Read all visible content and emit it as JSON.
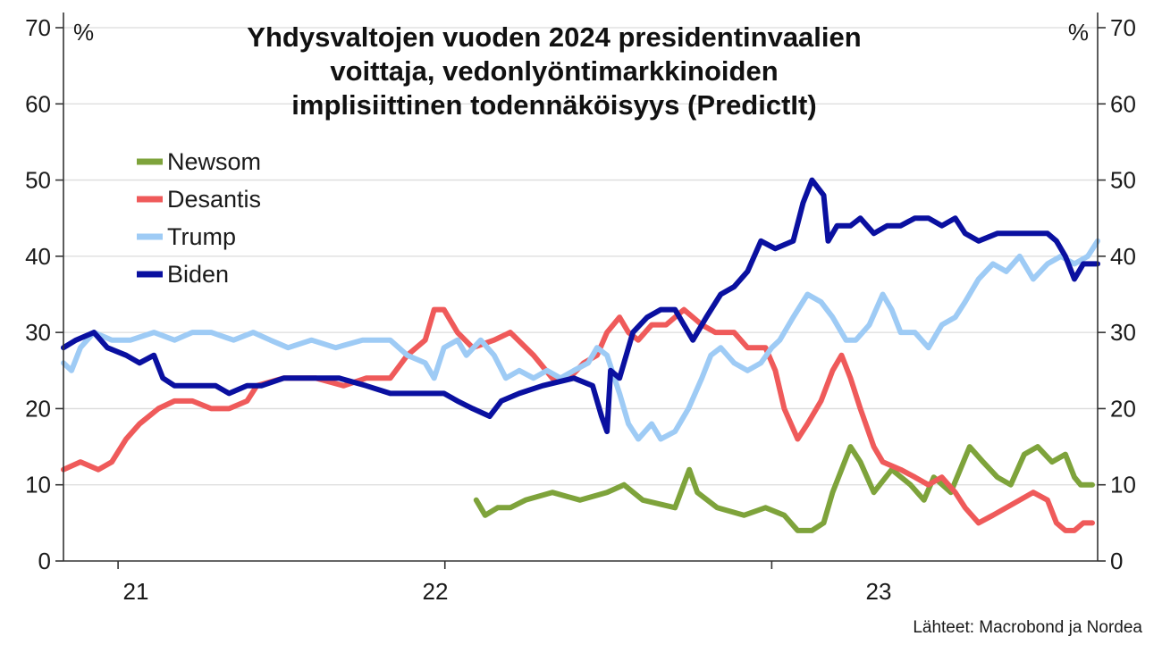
{
  "chart_data": {
    "type": "line",
    "title": [
      "Yhdysvaltojen vuoden 2024 presidentinvaalien",
      "voittaja, vedonlyöntimarkkinoiden",
      "implisiittinen todennäköisyys (PredictIt)"
    ],
    "unit_left": "%",
    "unit_right": "%",
    "source": "Lähteet: Macrobond ja Nordea",
    "ylim": [
      0,
      70
    ],
    "yticks": [
      "0",
      "10",
      "20",
      "30",
      "40",
      "50",
      "60",
      "70"
    ],
    "xlim": [
      "2020-11-01",
      "2023-12-31"
    ],
    "xticks": [
      {
        "date": "2021-01-01",
        "label": "21"
      },
      {
        "date": "2022-01-01",
        "label": "22"
      },
      {
        "date": "2023-01-01",
        "label": "23"
      }
    ],
    "legend_position": "upper-left",
    "grid": true,
    "series": [
      {
        "name": "Newsom",
        "color": "#7ea33b",
        "points": [
          [
            "2022-02-05",
            8
          ],
          [
            "2022-02-15",
            6
          ],
          [
            "2022-03-01",
            7
          ],
          [
            "2022-03-15",
            7
          ],
          [
            "2022-04-01",
            8
          ],
          [
            "2022-05-01",
            9
          ],
          [
            "2022-06-01",
            8
          ],
          [
            "2022-07-01",
            9
          ],
          [
            "2022-07-20",
            10
          ],
          [
            "2022-08-10",
            8
          ],
          [
            "2022-09-15",
            7
          ],
          [
            "2022-10-01",
            12
          ],
          [
            "2022-10-10",
            9
          ],
          [
            "2022-11-01",
            7
          ],
          [
            "2022-12-01",
            6
          ],
          [
            "2022-12-25",
            7
          ],
          [
            "2023-01-15",
            6
          ],
          [
            "2023-01-30",
            4
          ],
          [
            "2023-02-15",
            4
          ],
          [
            "2023-02-28",
            5
          ],
          [
            "2023-03-10",
            9
          ],
          [
            "2023-03-20",
            12
          ],
          [
            "2023-03-30",
            15
          ],
          [
            "2023-04-10",
            13
          ],
          [
            "2023-04-25",
            9
          ],
          [
            "2023-05-15",
            12
          ],
          [
            "2023-06-05",
            10
          ],
          [
            "2023-06-20",
            8
          ],
          [
            "2023-07-01",
            11
          ],
          [
            "2023-07-20",
            9
          ],
          [
            "2023-08-10",
            15
          ],
          [
            "2023-08-25",
            13
          ],
          [
            "2023-09-10",
            11
          ],
          [
            "2023-09-25",
            10
          ],
          [
            "2023-10-10",
            14
          ],
          [
            "2023-10-25",
            15
          ],
          [
            "2023-11-10",
            13
          ],
          [
            "2023-11-25",
            14
          ],
          [
            "2023-12-05",
            11
          ],
          [
            "2023-12-12",
            10
          ],
          [
            "2023-12-25",
            10
          ]
        ]
      },
      {
        "name": "Desantis",
        "color": "#ef5a5a",
        "points": [
          [
            "2020-11-01",
            12
          ],
          [
            "2020-11-20",
            13
          ],
          [
            "2020-12-10",
            12
          ],
          [
            "2020-12-25",
            13
          ],
          [
            "2021-01-10",
            16
          ],
          [
            "2021-01-25",
            18
          ],
          [
            "2021-02-15",
            20
          ],
          [
            "2021-03-05",
            21
          ],
          [
            "2021-03-25",
            21
          ],
          [
            "2021-04-15",
            20
          ],
          [
            "2021-05-05",
            20
          ],
          [
            "2021-05-25",
            21
          ],
          [
            "2021-06-05",
            23
          ],
          [
            "2021-07-05",
            24
          ],
          [
            "2021-08-10",
            24
          ],
          [
            "2021-09-10",
            23
          ],
          [
            "2021-10-05",
            24
          ],
          [
            "2021-11-01",
            24
          ],
          [
            "2021-11-20",
            27
          ],
          [
            "2021-12-10",
            29
          ],
          [
            "2021-12-20",
            33
          ],
          [
            "2021-12-31",
            33
          ],
          [
            "2022-01-15",
            30
          ],
          [
            "2022-02-01",
            28
          ],
          [
            "2022-02-25",
            29
          ],
          [
            "2022-03-15",
            30
          ],
          [
            "2022-04-10",
            27
          ],
          [
            "2022-05-01",
            24
          ],
          [
            "2022-05-20",
            24
          ],
          [
            "2022-06-05",
            26
          ],
          [
            "2022-06-20",
            27
          ],
          [
            "2022-07-01",
            30
          ],
          [
            "2022-07-15",
            32
          ],
          [
            "2022-07-25",
            30
          ],
          [
            "2022-08-05",
            29
          ],
          [
            "2022-08-20",
            31
          ],
          [
            "2022-09-05",
            31
          ],
          [
            "2022-09-25",
            33
          ],
          [
            "2022-10-15",
            31
          ],
          [
            "2022-10-30",
            30
          ],
          [
            "2022-11-20",
            30
          ],
          [
            "2022-12-05",
            28
          ],
          [
            "2022-12-25",
            28
          ],
          [
            "2023-01-05",
            25
          ],
          [
            "2023-01-15",
            20
          ],
          [
            "2023-01-30",
            16
          ],
          [
            "2023-02-10",
            18
          ],
          [
            "2023-02-25",
            21
          ],
          [
            "2023-03-10",
            25
          ],
          [
            "2023-03-20",
            27
          ],
          [
            "2023-03-30",
            24
          ],
          [
            "2023-04-10",
            20
          ],
          [
            "2023-04-25",
            15
          ],
          [
            "2023-05-05",
            13
          ],
          [
            "2023-05-25",
            12
          ],
          [
            "2023-06-10",
            11
          ],
          [
            "2023-06-25",
            10
          ],
          [
            "2023-07-10",
            11
          ],
          [
            "2023-07-25",
            9
          ],
          [
            "2023-08-05",
            7
          ],
          [
            "2023-08-20",
            5
          ],
          [
            "2023-09-05",
            6
          ],
          [
            "2023-09-20",
            7
          ],
          [
            "2023-10-05",
            8
          ],
          [
            "2023-10-20",
            9
          ],
          [
            "2023-11-05",
            8
          ],
          [
            "2023-11-15",
            5
          ],
          [
            "2023-11-25",
            4
          ],
          [
            "2023-12-05",
            4
          ],
          [
            "2023-12-15",
            5
          ],
          [
            "2023-12-25",
            5
          ]
        ]
      },
      {
        "name": "Trump",
        "color": "#9ecbf5",
        "points": [
          [
            "2020-11-01",
            26
          ],
          [
            "2020-11-10",
            25
          ],
          [
            "2020-11-20",
            28
          ],
          [
            "2020-12-05",
            30
          ],
          [
            "2020-12-25",
            29
          ],
          [
            "2021-01-15",
            29
          ],
          [
            "2021-02-10",
            30
          ],
          [
            "2021-03-05",
            29
          ],
          [
            "2021-03-25",
            30
          ],
          [
            "2021-04-15",
            30
          ],
          [
            "2021-05-10",
            29
          ],
          [
            "2021-06-01",
            30
          ],
          [
            "2021-06-20",
            29
          ],
          [
            "2021-07-10",
            28
          ],
          [
            "2021-08-05",
            29
          ],
          [
            "2021-09-01",
            28
          ],
          [
            "2021-10-01",
            29
          ],
          [
            "2021-11-01",
            29
          ],
          [
            "2021-11-20",
            27
          ],
          [
            "2021-12-10",
            26
          ],
          [
            "2021-12-20",
            24
          ],
          [
            "2021-12-31",
            28
          ],
          [
            "2022-01-15",
            29
          ],
          [
            "2022-01-25",
            27
          ],
          [
            "2022-02-10",
            29
          ],
          [
            "2022-02-25",
            27
          ],
          [
            "2022-03-10",
            24
          ],
          [
            "2022-03-25",
            25
          ],
          [
            "2022-04-10",
            24
          ],
          [
            "2022-04-25",
            25
          ],
          [
            "2022-05-10",
            24
          ],
          [
            "2022-05-25",
            25
          ],
          [
            "2022-06-10",
            26
          ],
          [
            "2022-06-20",
            28
          ],
          [
            "2022-07-01",
            27
          ],
          [
            "2022-07-15",
            22
          ],
          [
            "2022-07-25",
            18
          ],
          [
            "2022-08-05",
            16
          ],
          [
            "2022-08-20",
            18
          ],
          [
            "2022-08-30",
            16
          ],
          [
            "2022-09-15",
            17
          ],
          [
            "2022-09-30",
            20
          ],
          [
            "2022-10-15",
            24
          ],
          [
            "2022-10-25",
            27
          ],
          [
            "2022-11-05",
            28
          ],
          [
            "2022-11-20",
            26
          ],
          [
            "2022-12-05",
            25
          ],
          [
            "2022-12-20",
            26
          ],
          [
            "2023-01-01",
            28
          ],
          [
            "2023-01-10",
            29
          ],
          [
            "2023-01-25",
            32
          ],
          [
            "2023-02-10",
            35
          ],
          [
            "2023-02-25",
            34
          ],
          [
            "2023-03-10",
            32
          ],
          [
            "2023-03-25",
            29
          ],
          [
            "2023-04-05",
            29
          ],
          [
            "2023-04-20",
            31
          ],
          [
            "2023-05-05",
            35
          ],
          [
            "2023-05-15",
            33
          ],
          [
            "2023-05-25",
            30
          ],
          [
            "2023-06-10",
            30
          ],
          [
            "2023-06-25",
            28
          ],
          [
            "2023-07-10",
            31
          ],
          [
            "2023-07-25",
            32
          ],
          [
            "2023-08-05",
            34
          ],
          [
            "2023-08-20",
            37
          ],
          [
            "2023-09-05",
            39
          ],
          [
            "2023-09-20",
            38
          ],
          [
            "2023-10-05",
            40
          ],
          [
            "2023-10-20",
            37
          ],
          [
            "2023-11-05",
            39
          ],
          [
            "2023-11-20",
            40
          ],
          [
            "2023-12-05",
            39
          ],
          [
            "2023-12-20",
            40
          ],
          [
            "2023-12-31",
            42
          ]
        ]
      },
      {
        "name": "Biden",
        "color": "#0a10a0",
        "points": [
          [
            "2020-11-01",
            28
          ],
          [
            "2020-11-15",
            29
          ],
          [
            "2020-12-05",
            30
          ],
          [
            "2020-12-20",
            28
          ],
          [
            "2021-01-10",
            27
          ],
          [
            "2021-01-25",
            26
          ],
          [
            "2021-02-10",
            27
          ],
          [
            "2021-02-20",
            24
          ],
          [
            "2021-03-05",
            23
          ],
          [
            "2021-03-20",
            23
          ],
          [
            "2021-04-05",
            23
          ],
          [
            "2021-04-20",
            23
          ],
          [
            "2021-05-05",
            22
          ],
          [
            "2021-05-25",
            23
          ],
          [
            "2021-06-10",
            23
          ],
          [
            "2021-07-05",
            24
          ],
          [
            "2021-08-05",
            24
          ],
          [
            "2021-09-05",
            24
          ],
          [
            "2021-10-05",
            23
          ],
          [
            "2021-11-01",
            22
          ],
          [
            "2021-12-01",
            22
          ],
          [
            "2021-12-31",
            22
          ],
          [
            "2022-01-15",
            21
          ],
          [
            "2022-02-01",
            20
          ],
          [
            "2022-02-20",
            19
          ],
          [
            "2022-03-05",
            21
          ],
          [
            "2022-03-25",
            22
          ],
          [
            "2022-04-20",
            23
          ],
          [
            "2022-05-25",
            24
          ],
          [
            "2022-06-15",
            23
          ],
          [
            "2022-06-25",
            19
          ],
          [
            "2022-07-01",
            17
          ],
          [
            "2022-07-05",
            25
          ],
          [
            "2022-07-15",
            24
          ],
          [
            "2022-07-30",
            30
          ],
          [
            "2022-08-15",
            32
          ],
          [
            "2022-08-30",
            33
          ],
          [
            "2022-09-15",
            33
          ],
          [
            "2022-09-25",
            31
          ],
          [
            "2022-10-05",
            29
          ],
          [
            "2022-10-20",
            32
          ],
          [
            "2022-11-05",
            35
          ],
          [
            "2022-11-20",
            36
          ],
          [
            "2022-12-05",
            38
          ],
          [
            "2022-12-20",
            42
          ],
          [
            "2023-01-05",
            41
          ],
          [
            "2023-01-25",
            42
          ],
          [
            "2023-02-05",
            47
          ],
          [
            "2023-02-15",
            50
          ],
          [
            "2023-02-28",
            48
          ],
          [
            "2023-03-05",
            42
          ],
          [
            "2023-03-15",
            44
          ],
          [
            "2023-03-30",
            44
          ],
          [
            "2023-04-10",
            45
          ],
          [
            "2023-04-25",
            43
          ],
          [
            "2023-05-10",
            44
          ],
          [
            "2023-05-25",
            44
          ],
          [
            "2023-06-10",
            45
          ],
          [
            "2023-06-25",
            45
          ],
          [
            "2023-07-10",
            44
          ],
          [
            "2023-07-25",
            45
          ],
          [
            "2023-08-05",
            43
          ],
          [
            "2023-08-20",
            42
          ],
          [
            "2023-09-10",
            43
          ],
          [
            "2023-09-25",
            43
          ],
          [
            "2023-10-10",
            43
          ],
          [
            "2023-10-25",
            43
          ],
          [
            "2023-11-05",
            43
          ],
          [
            "2023-11-15",
            42
          ],
          [
            "2023-11-25",
            40
          ],
          [
            "2023-12-05",
            37
          ],
          [
            "2023-12-15",
            39
          ],
          [
            "2023-12-31",
            39
          ]
        ]
      }
    ]
  }
}
